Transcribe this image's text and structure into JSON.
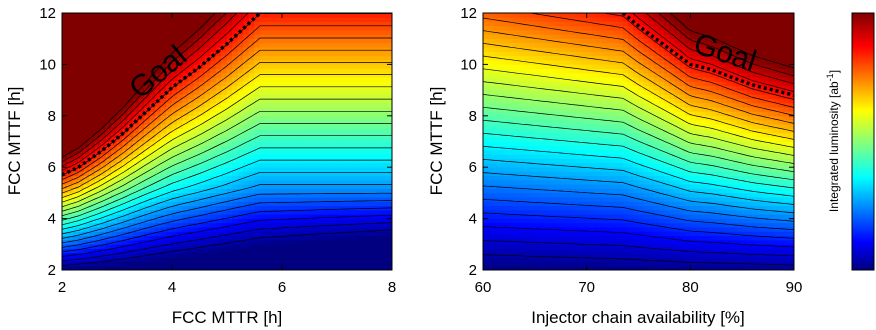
{
  "chart_data": [
    {
      "type": "heatmap",
      "xlabel": "FCC MTTR [h]",
      "ylabel": "FCC MTTF [h]",
      "xlim": [
        2,
        8
      ],
      "ylim": [
        2,
        12
      ],
      "xticks": [
        "2",
        "4",
        "6",
        "8"
      ],
      "yticks": [
        "2",
        "4",
        "6",
        "8",
        "10",
        "12"
      ],
      "annotation": "Goal",
      "goal_boundary": {
        "x": [
          2.0,
          2.3,
          2.7,
          3.1,
          3.5,
          4.0,
          4.5,
          5.0,
          5.3,
          5.6
        ],
        "y": [
          5.7,
          6.0,
          6.6,
          7.3,
          8.1,
          9.1,
          9.9,
          10.8,
          11.4,
          12.0
        ]
      }
    },
    {
      "type": "heatmap",
      "xlabel": "Injector chain availability [%]",
      "ylabel": "FCC MTTF [h]",
      "xlim": [
        60,
        90
      ],
      "ylim": [
        2,
        12
      ],
      "xticks": [
        "60",
        "70",
        "80",
        "90"
      ],
      "yticks": [
        "2",
        "4",
        "6",
        "8",
        "10",
        "12"
      ],
      "annotation": "Goal",
      "goal_boundary": {
        "x": [
          73.5,
          75,
          77,
          79,
          80,
          82,
          84,
          86,
          88,
          90
        ],
        "y": [
          12.0,
          11.5,
          10.9,
          10.3,
          10.0,
          9.8,
          9.5,
          9.2,
          9.0,
          8.8
        ]
      }
    }
  ],
  "colorbar": {
    "label": "Integrated luminosity [ab",
    "label_sup": "-1",
    "label_end": "]"
  }
}
